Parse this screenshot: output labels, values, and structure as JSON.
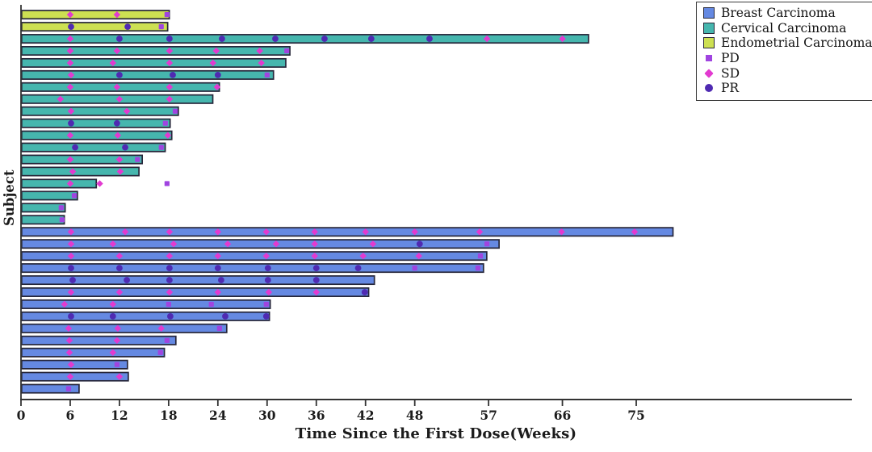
{
  "chart_data": {
    "type": "bar",
    "subtype": "swimmer-plot",
    "orientation": "horizontal",
    "title": "",
    "xlabel": "Time Since the First Dose(Weeks)",
    "ylabel": "Subject",
    "x_ticks": [
      0,
      6,
      12,
      18,
      24,
      30,
      36,
      42,
      48,
      57,
      66,
      75
    ],
    "xlim": [
      0,
      101
    ],
    "grid": false,
    "legend_position": "top-right",
    "axis_color": "#333333",
    "bar_outline_color": "#26263a",
    "groups": {
      "breast": {
        "label": "Breast Carcinoma",
        "color": "#6589e2"
      },
      "cervical": {
        "label": "Cervical Carcinoma",
        "color": "#46b6ae"
      },
      "endometrial": {
        "label": "Endometrial Carcinoma",
        "color": "#cde052"
      }
    },
    "markers": {
      "PD": {
        "label": "PD",
        "shape": "square",
        "color": "#a044e0"
      },
      "SD": {
        "label": "SD",
        "shape": "diamond",
        "color": "#e23ad0"
      },
      "PR": {
        "label": "PR",
        "shape": "circle",
        "color": "#4f2ab2"
      }
    },
    "subjects": [
      {
        "group": "endometrial",
        "weeks": 18.0,
        "events": [
          {
            "type": "SD",
            "week": 6
          },
          {
            "type": "SD",
            "week": 11.7
          },
          {
            "type": "PD",
            "week": 17.8
          }
        ]
      },
      {
        "group": "endometrial",
        "weeks": 17.8,
        "events": [
          {
            "type": "PR",
            "week": 6.1
          },
          {
            "type": "PR",
            "week": 13
          },
          {
            "type": "PD",
            "week": 17.1
          }
        ]
      },
      {
        "group": "cervical",
        "weeks": 69.1,
        "events": [
          {
            "type": "SD",
            "week": 6
          },
          {
            "type": "PR",
            "week": 12
          },
          {
            "type": "PR",
            "week": 18.1
          },
          {
            "type": "PR",
            "week": 24.5
          },
          {
            "type": "PR",
            "week": 31
          },
          {
            "type": "PR",
            "week": 37
          },
          {
            "type": "PR",
            "week": 42.7
          },
          {
            "type": "PR",
            "week": 49.8
          },
          {
            "type": "SD",
            "week": 56.8
          },
          {
            "type": "SD",
            "week": 66
          }
        ]
      },
      {
        "group": "cervical",
        "weeks": 32.7,
        "events": [
          {
            "type": "SD",
            "week": 6
          },
          {
            "type": "SD",
            "week": 11.7
          },
          {
            "type": "SD",
            "week": 18.1
          },
          {
            "type": "SD",
            "week": 23.8
          },
          {
            "type": "SD",
            "week": 29.1
          },
          {
            "type": "PD",
            "week": 32.4
          }
        ]
      },
      {
        "group": "cervical",
        "weeks": 32.2,
        "events": [
          {
            "type": "SD",
            "week": 6
          },
          {
            "type": "SD",
            "week": 11.2
          },
          {
            "type": "SD",
            "week": 18.1
          },
          {
            "type": "SD",
            "week": 23.4
          },
          {
            "type": "SD",
            "week": 29.3
          }
        ]
      },
      {
        "group": "cervical",
        "weeks": 30.7,
        "events": [
          {
            "type": "SD",
            "week": 6.1
          },
          {
            "type": "PR",
            "week": 12
          },
          {
            "type": "PR",
            "week": 18.5
          },
          {
            "type": "PR",
            "week": 24
          },
          {
            "type": "PD",
            "week": 30
          }
        ]
      },
      {
        "group": "cervical",
        "weeks": 24.1,
        "events": [
          {
            "type": "SD",
            "week": 6
          },
          {
            "type": "SD",
            "week": 11.7
          },
          {
            "type": "SD",
            "week": 18.1
          },
          {
            "type": "SD",
            "week": 23.9
          }
        ]
      },
      {
        "group": "cervical",
        "weeks": 23.3,
        "events": [
          {
            "type": "SD",
            "week": 4.8
          },
          {
            "type": "SD",
            "week": 12
          },
          {
            "type": "SD",
            "week": 18.1
          }
        ]
      },
      {
        "group": "cervical",
        "weeks": 19.1,
        "events": [
          {
            "type": "SD",
            "week": 6.1
          },
          {
            "type": "SD",
            "week": 12.9
          },
          {
            "type": "PD",
            "week": 18.8
          }
        ]
      },
      {
        "group": "cervical",
        "weeks": 18.1,
        "events": [
          {
            "type": "PR",
            "week": 6.1
          },
          {
            "type": "PR",
            "week": 11.7
          },
          {
            "type": "PD",
            "week": 17.6
          }
        ]
      },
      {
        "group": "cervical",
        "weeks": 18.3,
        "events": [
          {
            "type": "SD",
            "week": 6
          },
          {
            "type": "SD",
            "week": 11.8
          },
          {
            "type": "SD",
            "week": 17.9
          }
        ]
      },
      {
        "group": "cervical",
        "weeks": 17.5,
        "events": [
          {
            "type": "PR",
            "week": 6.6
          },
          {
            "type": "PR",
            "week": 12.7
          },
          {
            "type": "PD",
            "week": 17.1
          }
        ]
      },
      {
        "group": "cervical",
        "weeks": 14.7,
        "events": [
          {
            "type": "SD",
            "week": 6
          },
          {
            "type": "SD",
            "week": 12
          },
          {
            "type": "PD",
            "week": 14.2
          }
        ]
      },
      {
        "group": "cervical",
        "weeks": 14.3,
        "events": [
          {
            "type": "SD",
            "week": 6.3
          },
          {
            "type": "SD",
            "week": 12.1
          }
        ]
      },
      {
        "group": "cervical",
        "weeks": 9.1,
        "events": [
          {
            "type": "SD",
            "week": 6
          },
          {
            "type": "SD",
            "week": 9.6
          },
          {
            "type": "PD",
            "week": 17.8
          }
        ]
      },
      {
        "group": "cervical",
        "weeks": 6.8,
        "events": [
          {
            "type": "PD",
            "week": 6.5
          }
        ]
      },
      {
        "group": "cervical",
        "weeks": 5.3,
        "events": [
          {
            "type": "PD",
            "week": 4.9
          }
        ]
      },
      {
        "group": "cervical",
        "weeks": 5.2,
        "events": [
          {
            "type": "PD",
            "week": 5
          }
        ]
      },
      {
        "group": "breast",
        "weeks": 79.4,
        "events": [
          {
            "type": "SD",
            "week": 6.1
          },
          {
            "type": "SD",
            "week": 12.7
          },
          {
            "type": "SD",
            "week": 18.1
          },
          {
            "type": "SD",
            "week": 24
          },
          {
            "type": "SD",
            "week": 29.9
          },
          {
            "type": "SD",
            "week": 35.8
          },
          {
            "type": "SD",
            "week": 42
          },
          {
            "type": "SD",
            "week": 48
          },
          {
            "type": "SD",
            "week": 55.9
          },
          {
            "type": "SD",
            "week": 65.9
          },
          {
            "type": "SD",
            "week": 74.8
          }
        ]
      },
      {
        "group": "breast",
        "weeks": 58.2,
        "events": [
          {
            "type": "SD",
            "week": 6.1
          },
          {
            "type": "SD",
            "week": 11.2
          },
          {
            "type": "SD",
            "week": 18.6
          },
          {
            "type": "SD",
            "week": 25.2
          },
          {
            "type": "SD",
            "week": 31.1
          },
          {
            "type": "SD",
            "week": 35.8
          },
          {
            "type": "SD",
            "week": 42.9
          },
          {
            "type": "PR",
            "week": 48.6
          },
          {
            "type": "PD",
            "week": 56.8
          }
        ]
      },
      {
        "group": "breast",
        "weeks": 56.7,
        "events": [
          {
            "type": "SD",
            "week": 6.1
          },
          {
            "type": "SD",
            "week": 12
          },
          {
            "type": "SD",
            "week": 18.1
          },
          {
            "type": "SD",
            "week": 24
          },
          {
            "type": "SD",
            "week": 29.9
          },
          {
            "type": "SD",
            "week": 35.8
          },
          {
            "type": "SD",
            "week": 41.7
          },
          {
            "type": "SD",
            "week": 48.5
          },
          {
            "type": "PD",
            "week": 56
          }
        ]
      },
      {
        "group": "breast",
        "weeks": 56.3,
        "events": [
          {
            "type": "PR",
            "week": 6.1
          },
          {
            "type": "PR",
            "week": 12
          },
          {
            "type": "PR",
            "week": 18.1
          },
          {
            "type": "PR",
            "week": 24
          },
          {
            "type": "PR",
            "week": 30.1
          },
          {
            "type": "PR",
            "week": 36
          },
          {
            "type": "PR",
            "week": 41.1
          },
          {
            "type": "PD",
            "week": 48
          },
          {
            "type": "PD",
            "week": 55.7
          }
        ]
      },
      {
        "group": "breast",
        "weeks": 43.0,
        "events": [
          {
            "type": "PR",
            "week": 6.3
          },
          {
            "type": "PR",
            "week": 12.9
          },
          {
            "type": "PR",
            "week": 18.1
          },
          {
            "type": "PR",
            "week": 24.4
          },
          {
            "type": "PR",
            "week": 30.1
          },
          {
            "type": "PR",
            "week": 36
          }
        ]
      },
      {
        "group": "breast",
        "weeks": 42.3,
        "events": [
          {
            "type": "SD",
            "week": 6.1
          },
          {
            "type": "SD",
            "week": 12
          },
          {
            "type": "SD",
            "week": 18.1
          },
          {
            "type": "SD",
            "week": 24
          },
          {
            "type": "SD",
            "week": 30.2
          },
          {
            "type": "SD",
            "week": 36
          },
          {
            "type": "PR",
            "week": 41.9
          }
        ]
      },
      {
        "group": "breast",
        "weeks": 30.3,
        "events": [
          {
            "type": "SD",
            "week": 5.3
          },
          {
            "type": "SD",
            "week": 11.2
          },
          {
            "type": "PD",
            "week": 18
          },
          {
            "type": "PD",
            "week": 23.2
          },
          {
            "type": "PD",
            "week": 29.9
          }
        ]
      },
      {
        "group": "breast",
        "weeks": 30.2,
        "events": [
          {
            "type": "PR",
            "week": 6.1
          },
          {
            "type": "PR",
            "week": 11.2
          },
          {
            "type": "PR",
            "week": 18.2
          },
          {
            "type": "PR",
            "week": 24.9
          },
          {
            "type": "PR",
            "week": 29.9
          }
        ]
      },
      {
        "group": "breast",
        "weeks": 25.0,
        "events": [
          {
            "type": "SD",
            "week": 5.8
          },
          {
            "type": "SD",
            "week": 11.8
          },
          {
            "type": "SD",
            "week": 17.1
          },
          {
            "type": "PD",
            "week": 24.2
          }
        ]
      },
      {
        "group": "breast",
        "weeks": 18.8,
        "events": [
          {
            "type": "SD",
            "week": 5.9
          },
          {
            "type": "SD",
            "week": 11.7
          },
          {
            "type": "PD",
            "week": 17.8
          }
        ]
      },
      {
        "group": "breast",
        "weeks": 17.4,
        "events": [
          {
            "type": "SD",
            "week": 5.9
          },
          {
            "type": "SD",
            "week": 11.2
          },
          {
            "type": "PD",
            "week": 17
          }
        ]
      },
      {
        "group": "breast",
        "weeks": 12.9,
        "events": [
          {
            "type": "SD",
            "week": 6.1
          },
          {
            "type": "PD",
            "week": 11.7
          }
        ]
      },
      {
        "group": "breast",
        "weeks": 13.0,
        "events": [
          {
            "type": "SD",
            "week": 6
          },
          {
            "type": "SD",
            "week": 12
          }
        ]
      },
      {
        "group": "breast",
        "weeks": 7.0,
        "events": [
          {
            "type": "PD",
            "week": 5.8
          }
        ]
      }
    ],
    "legend_entries_order": [
      "breast",
      "cervical",
      "endometrial",
      "PD",
      "SD",
      "PR"
    ]
  }
}
